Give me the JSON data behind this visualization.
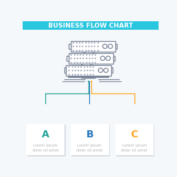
{
  "title": "BUSINESS FLOW CHART",
  "title_bg": "#29c6e0",
  "title_color": "#ffffff",
  "title_fontsize": 6.5,
  "server_color": "#7a8499",
  "server_lw": 0.9,
  "flow_color_A": "#26a69a",
  "flow_color_B": "#2979c0",
  "flow_color_C": "#ffa726",
  "dot_color_left": "#26a69a",
  "dot_color_right": "#ffa726",
  "label_A": "A",
  "label_B": "B",
  "label_C": "C",
  "label_color_A": "#26a69a",
  "label_color_B": "#2979c0",
  "label_color_C": "#ffa726",
  "body_text": "Lorem ipsum\ndolor sit amet",
  "body_fontsize": 3.8,
  "body_color": "#b0b0b0",
  "background_color": "#f5f8fa",
  "card_bg": "#ffffff"
}
